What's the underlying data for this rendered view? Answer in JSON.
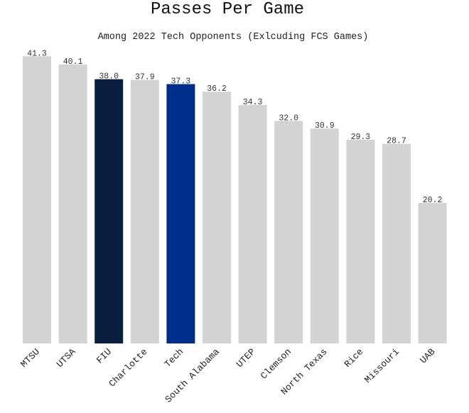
{
  "chart_data": {
    "type": "bar",
    "title": "Passes Per Game",
    "subtitle": "Among 2022 Tech Opponents (Exlcuding FCS Games)",
    "xlabel": "",
    "ylabel": "",
    "ylim": [
      0,
      42
    ],
    "grid": false,
    "categories": [
      "MTSU",
      "UTSA",
      "FIU",
      "Charlotte",
      "Tech",
      "South Alabama",
      "UTEP",
      "Clemson",
      "North Texas",
      "Rice",
      "Missouri",
      "UAB"
    ],
    "values": [
      41.3,
      40.1,
      38.0,
      37.9,
      37.3,
      36.2,
      34.3,
      32.0,
      30.9,
      29.3,
      28.7,
      20.2
    ],
    "value_labels": [
      "41.3",
      "40.1",
      "38.0",
      "37.9",
      "37.3",
      "36.2",
      "34.3",
      "32.0",
      "30.9",
      "29.3",
      "28.7",
      "20.2"
    ],
    "colors": [
      "#d3d3d3",
      "#d3d3d3",
      "#0a1f3f",
      "#d3d3d3",
      "#002d8a",
      "#d3d3d3",
      "#d3d3d3",
      "#d3d3d3",
      "#d3d3d3",
      "#d3d3d3",
      "#d3d3d3",
      "#d3d3d3"
    ]
  }
}
